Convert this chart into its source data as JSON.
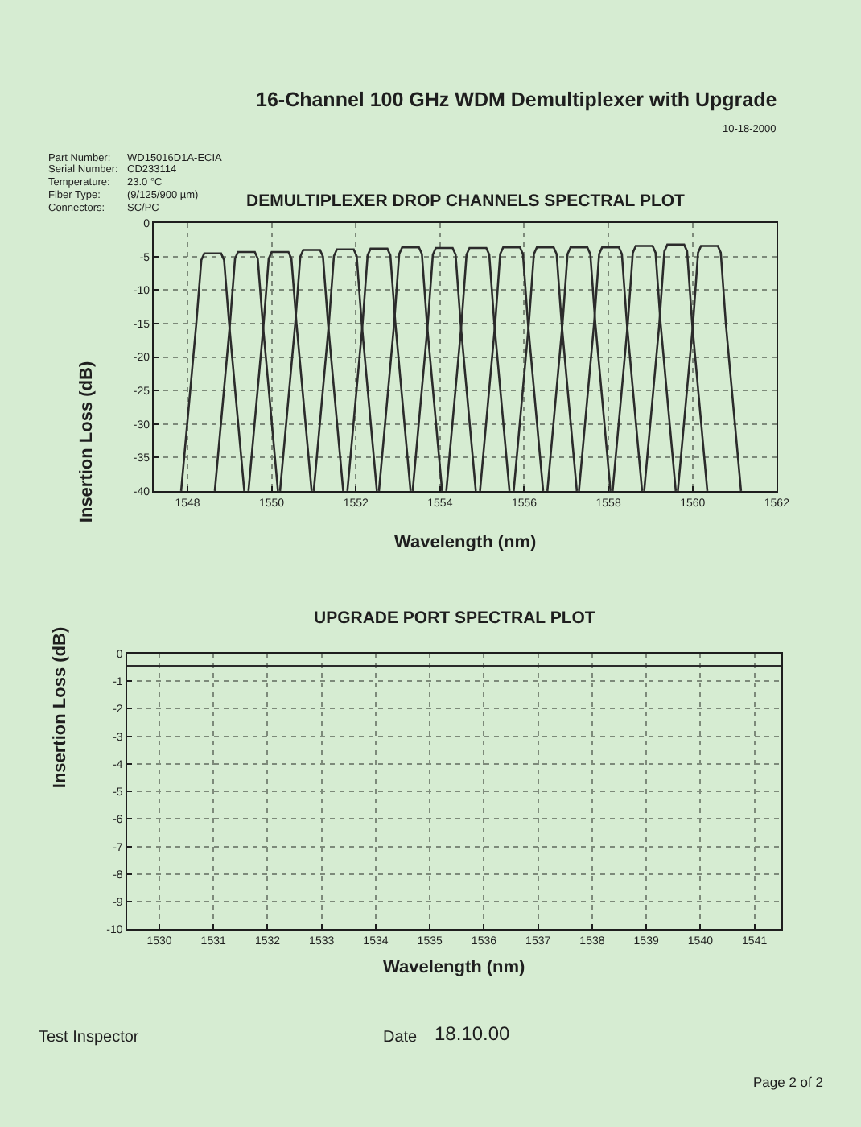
{
  "chart_data": [
    {
      "type": "other",
      "title": "16-Channel 100 GHz WDM Demultiplexer with Upgrade",
      "annotations": [
        "10-18-2000",
        "Part Number:",
        "WD15016D1A-ECIA",
        "Serial Number:",
        "CD233114",
        "Temperature:",
        "23.0 °C",
        "Fiber Type:",
        "(9/125/900 µm)",
        "Connectors:",
        "SC/PC"
      ]
    },
    {
      "type": "line",
      "title": "DEMULTIPLEXER DROP CHANNELS SPECTRAL PLOT",
      "xlabel": "Wavelength (nm)",
      "ylabel": "Insertion Loss (dB)",
      "xlim": [
        1547.2,
        1562
      ],
      "xticks": [
        1548,
        1550,
        1552,
        1554,
        1556,
        1558,
        1560,
        1562
      ],
      "ylim": [
        -40,
        0
      ],
      "yticks": [
        0,
        -5,
        -10,
        -15,
        -20,
        -25,
        -30,
        -35,
        -40
      ],
      "grid": true,
      "line_style": "solid",
      "series": [
        {
          "color": "#2b2b2b",
          "x": [
            1547.85,
            1548.21,
            1548.33,
            1548.4,
            1548.8,
            1548.87,
            1548.99,
            1549.35
          ],
          "values": [
            -40,
            -15,
            -5.5,
            -4.5,
            -4.5,
            -5.5,
            -15,
            -40
          ]
        },
        {
          "color": "#2b2b2b",
          "x": [
            1548.65,
            1549.01,
            1549.13,
            1549.2,
            1549.6,
            1549.67,
            1549.79,
            1550.15
          ],
          "values": [
            -40,
            -15,
            -5.3,
            -4.3,
            -4.3,
            -5.3,
            -15,
            -40
          ]
        },
        {
          "color": "#2b2b2b",
          "x": [
            1549.45,
            1549.81,
            1549.93,
            1550.0,
            1550.4,
            1550.47,
            1550.59,
            1550.95
          ],
          "values": [
            -40,
            -15,
            -5.3,
            -4.3,
            -4.3,
            -5.3,
            -15,
            -40
          ]
        },
        {
          "color": "#2b2b2b",
          "x": [
            1550.2,
            1550.56,
            1550.68,
            1550.75,
            1551.15,
            1551.22,
            1551.34,
            1551.7
          ],
          "values": [
            -40,
            -15,
            -5.0,
            -4.0,
            -4.0,
            -5.0,
            -15,
            -40
          ]
        },
        {
          "color": "#2b2b2b",
          "x": [
            1551.0,
            1551.36,
            1551.48,
            1551.55,
            1551.95,
            1552.02,
            1552.14,
            1552.5
          ],
          "values": [
            -40,
            -15,
            -4.9,
            -3.9,
            -3.9,
            -4.9,
            -15,
            -40
          ]
        },
        {
          "color": "#2b2b2b",
          "x": [
            1551.8,
            1552.16,
            1552.28,
            1552.35,
            1552.75,
            1552.82,
            1552.94,
            1553.3
          ],
          "values": [
            -40,
            -15,
            -4.8,
            -3.8,
            -3.8,
            -4.8,
            -15,
            -40
          ]
        },
        {
          "color": "#2b2b2b",
          "x": [
            1552.55,
            1552.91,
            1553.03,
            1553.1,
            1553.5,
            1553.57,
            1553.69,
            1554.05
          ],
          "values": [
            -40,
            -15,
            -4.6,
            -3.6,
            -3.6,
            -4.6,
            -15,
            -40
          ]
        },
        {
          "color": "#2b2b2b",
          "x": [
            1553.35,
            1553.71,
            1553.83,
            1553.9,
            1554.3,
            1554.37,
            1554.49,
            1554.85
          ],
          "values": [
            -40,
            -15,
            -4.7,
            -3.7,
            -3.7,
            -4.7,
            -15,
            -40
          ]
        },
        {
          "color": "#2b2b2b",
          "x": [
            1554.15,
            1554.51,
            1554.63,
            1554.7,
            1555.1,
            1555.17,
            1555.29,
            1555.65
          ],
          "values": [
            -40,
            -15,
            -4.7,
            -3.7,
            -3.7,
            -4.7,
            -15,
            -40
          ]
        },
        {
          "color": "#2b2b2b",
          "x": [
            1554.95,
            1555.31,
            1555.43,
            1555.5,
            1555.9,
            1555.97,
            1556.09,
            1556.45
          ],
          "values": [
            -40,
            -15,
            -4.6,
            -3.6,
            -3.6,
            -4.6,
            -15,
            -40
          ]
        },
        {
          "color": "#2b2b2b",
          "x": [
            1555.75,
            1556.11,
            1556.23,
            1556.3,
            1556.7,
            1556.77,
            1556.89,
            1557.25
          ],
          "values": [
            -40,
            -15,
            -4.6,
            -3.6,
            -3.6,
            -4.6,
            -15,
            -40
          ]
        },
        {
          "color": "#2b2b2b",
          "x": [
            1556.55,
            1556.91,
            1557.03,
            1557.1,
            1557.5,
            1557.57,
            1557.69,
            1558.05
          ],
          "values": [
            -40,
            -15,
            -4.6,
            -3.6,
            -3.6,
            -4.6,
            -15,
            -40
          ]
        },
        {
          "color": "#2b2b2b",
          "x": [
            1557.3,
            1557.66,
            1557.78,
            1557.85,
            1558.25,
            1558.32,
            1558.44,
            1558.8
          ],
          "values": [
            -40,
            -15,
            -4.6,
            -3.6,
            -3.6,
            -4.6,
            -15,
            -40
          ]
        },
        {
          "color": "#2b2b2b",
          "x": [
            1558.1,
            1558.46,
            1558.58,
            1558.65,
            1559.05,
            1559.12,
            1559.24,
            1559.6
          ],
          "values": [
            -40,
            -15,
            -4.4,
            -3.4,
            -3.4,
            -4.4,
            -15,
            -40
          ]
        },
        {
          "color": "#2b2b2b",
          "x": [
            1558.85,
            1559.21,
            1559.33,
            1559.4,
            1559.8,
            1559.87,
            1559.99,
            1560.35
          ],
          "values": [
            -40,
            -15,
            -4.2,
            -3.2,
            -3.2,
            -4.2,
            -15,
            -40
          ]
        },
        {
          "color": "#2b2b2b",
          "x": [
            1559.65,
            1560.01,
            1560.13,
            1560.2,
            1560.6,
            1560.67,
            1560.79,
            1561.15
          ],
          "values": [
            -40,
            -15,
            -4.4,
            -3.4,
            -3.4,
            -4.4,
            -15,
            -40
          ]
        }
      ]
    },
    {
      "type": "line",
      "title": "UPGRADE PORT SPECTRAL PLOT",
      "xlabel": "Wavelength (nm)",
      "ylabel": "Insertion Loss (dB)",
      "xlim": [
        1529.4,
        1541.5
      ],
      "xticks": [
        1530,
        1531,
        1532,
        1533,
        1534,
        1535,
        1536,
        1537,
        1538,
        1539,
        1540,
        1541
      ],
      "ylim": [
        -10,
        0
      ],
      "yticks": [
        0,
        -1,
        -2,
        -3,
        -4,
        -5,
        -6,
        -7,
        -8,
        -9,
        -10
      ],
      "grid": true,
      "line_style": "solid",
      "series": [
        {
          "color": "#2b2b2b",
          "x": [
            1529.4,
            1541.5
          ],
          "values": [
            -0.45,
            -0.45
          ]
        }
      ]
    },
    {
      "type": "other",
      "annotations": [
        "Test Inspector",
        "Date",
        "18.10.00",
        "Page 2 of 2"
      ]
    }
  ]
}
